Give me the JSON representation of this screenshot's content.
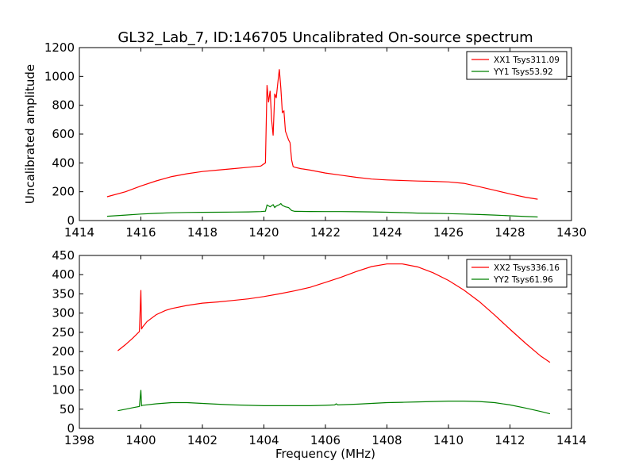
{
  "title": "GL32_Lab_7, ID:146705 Uncalibrated On-source spectrum",
  "colors": {
    "xx": "#ff0000",
    "yy": "#008000",
    "axis": "#000000"
  },
  "chart_data": [
    {
      "type": "line",
      "xlabel": "",
      "ylabel": "Uncalibrated amplitude",
      "xlim": [
        1414,
        1430
      ],
      "ylim": [
        0,
        1200
      ],
      "xticks": [
        1414,
        1416,
        1418,
        1420,
        1422,
        1424,
        1426,
        1428,
        1430
      ],
      "yticks": [
        0,
        200,
        400,
        600,
        800,
        1000,
        1200
      ],
      "legend_position": "top-right",
      "grid": false,
      "series": [
        {
          "name": "XX1 Tsys311.09",
          "color": "#ff0000",
          "x": [
            1414.9,
            1415.5,
            1416,
            1416.5,
            1417,
            1417.5,
            1418,
            1418.5,
            1419,
            1419.5,
            1419.9,
            1420.05,
            1420.1,
            1420.15,
            1420.2,
            1420.25,
            1420.3,
            1420.35,
            1420.4,
            1420.45,
            1420.5,
            1420.55,
            1420.6,
            1420.65,
            1420.7,
            1420.75,
            1420.8,
            1420.85,
            1420.9,
            1420.95,
            1421.0,
            1421.2,
            1421.5,
            1422,
            1422.5,
            1423,
            1423.5,
            1424,
            1424.5,
            1425,
            1425.5,
            1426,
            1426.5,
            1427,
            1427.5,
            1428,
            1428.5,
            1428.9
          ],
          "y": [
            165,
            200,
            240,
            275,
            305,
            325,
            340,
            350,
            360,
            370,
            378,
            400,
            940,
            820,
            900,
            700,
            590,
            880,
            850,
            950,
            1050,
            920,
            750,
            760,
            620,
            590,
            560,
            540,
            420,
            375,
            370,
            360,
            350,
            330,
            315,
            300,
            288,
            282,
            278,
            274,
            272,
            268,
            258,
            235,
            210,
            185,
            162,
            148
          ]
        },
        {
          "name": "YY1 Tsys53.92",
          "color": "#008000",
          "x": [
            1414.9,
            1415.5,
            1416,
            1416.5,
            1417,
            1417.5,
            1418,
            1418.5,
            1419,
            1419.5,
            1419.9,
            1420.05,
            1420.1,
            1420.2,
            1420.3,
            1420.35,
            1420.4,
            1420.5,
            1420.55,
            1420.6,
            1420.7,
            1420.8,
            1420.9,
            1421.0,
            1421.5,
            1422,
            1422.5,
            1423,
            1423.5,
            1424,
            1424.5,
            1425,
            1425.5,
            1426,
            1426.5,
            1427,
            1427.5,
            1428,
            1428.5,
            1428.9
          ],
          "y": [
            30,
            38,
            45,
            50,
            54,
            56,
            57,
            58,
            59,
            60,
            62,
            65,
            108,
            95,
            110,
            90,
            100,
            110,
            118,
            105,
            95,
            90,
            70,
            64,
            63,
            62,
            62,
            61,
            60,
            58,
            55,
            52,
            50,
            48,
            45,
            42,
            38,
            33,
            28,
            25
          ]
        }
      ]
    },
    {
      "type": "line",
      "xlabel": "Frequency (MHz)",
      "ylabel": "",
      "xlim": [
        1398,
        1414
      ],
      "ylim": [
        0,
        450
      ],
      "xticks": [
        1398,
        1400,
        1402,
        1404,
        1406,
        1408,
        1410,
        1412,
        1414
      ],
      "yticks": [
        0,
        50,
        100,
        150,
        200,
        250,
        300,
        350,
        400,
        450
      ],
      "legend_position": "top-right",
      "grid": false,
      "series": [
        {
          "name": "XX2 Tsys336.16",
          "color": "#ff0000",
          "x": [
            1399.25,
            1399.5,
            1399.75,
            1399.95,
            1400.0,
            1400.02,
            1400.05,
            1400.2,
            1400.5,
            1400.8,
            1401,
            1401.5,
            1402,
            1402.5,
            1403,
            1403.5,
            1404,
            1404.5,
            1405,
            1405.5,
            1406,
            1406.5,
            1407,
            1407.5,
            1408,
            1408.5,
            1409,
            1409.5,
            1410,
            1410.5,
            1411,
            1411.5,
            1412,
            1412.5,
            1413,
            1413.3
          ],
          "y": [
            202,
            218,
            236,
            252,
            360,
            258,
            263,
            278,
            296,
            307,
            312,
            320,
            326,
            329,
            333,
            337,
            343,
            350,
            358,
            367,
            380,
            393,
            408,
            421,
            428,
            428,
            420,
            405,
            385,
            360,
            330,
            295,
            258,
            222,
            188,
            172
          ]
        },
        {
          "name": "YY2 Tsys61.96",
          "color": "#008000",
          "x": [
            1399.25,
            1399.5,
            1399.75,
            1399.95,
            1400.0,
            1400.02,
            1400.05,
            1400.5,
            1401,
            1401.5,
            1402,
            1402.5,
            1403,
            1403.5,
            1404,
            1404.5,
            1405,
            1405.5,
            1406,
            1406.3,
            1406.35,
            1406.4,
            1407,
            1407.5,
            1408,
            1408.5,
            1409,
            1409.5,
            1410,
            1410.5,
            1411,
            1411.5,
            1412,
            1412.5,
            1413,
            1413.3
          ],
          "y": [
            46,
            50,
            54,
            57,
            100,
            59,
            60,
            64,
            67,
            67,
            65,
            63,
            61,
            60,
            59,
            59,
            59,
            59,
            60,
            61,
            64,
            61,
            63,
            65,
            67,
            68,
            69,
            70,
            71,
            71,
            70,
            67,
            61,
            53,
            44,
            38
          ]
        }
      ]
    }
  ]
}
